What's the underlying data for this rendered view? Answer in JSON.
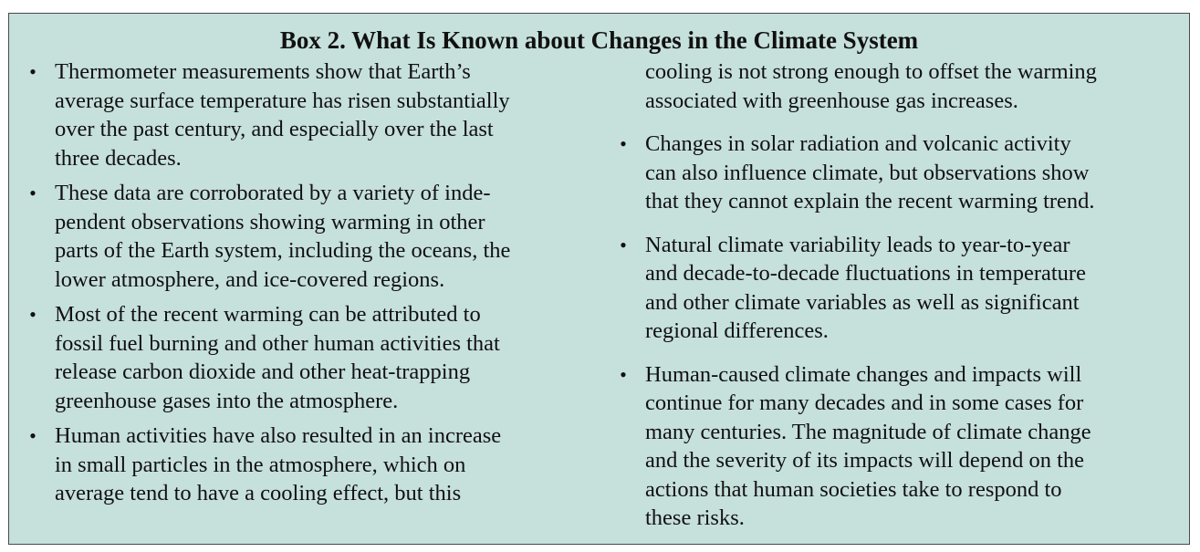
{
  "box": {
    "title": "Box 2.  What Is Known about Changes in the Climate System",
    "bullet_glyph": "•",
    "background_color": "#c6e0dc",
    "left_column": {
      "items": [
        {
          "text": "Thermometer measurements show that Earth’s\naverage surface temperature has risen substantially\nover the past century, and especially over the last\nthree decades."
        },
        {
          "text": "These data are corroborated by a variety of inde-\npendent observations showing warming in other\nparts of the Earth system, including the oceans, the\nlower atmosphere, and ice-covered regions."
        },
        {
          "text": "Most of the recent warming can be attributed to\nfossil fuel burning and other human activities that\nrelease carbon dioxide and other heat-trapping\ngreenhouse gases into the atmosphere."
        },
        {
          "text": "Human activities have also resulted in an increase\nin small particles in the atmosphere, which on\naverage tend to have a cooling effect, but this"
        }
      ]
    },
    "right_column": {
      "continuation": "cooling is not strong enough to offset the warming\nassociated with greenhouse gas increases.",
      "items": [
        {
          "text": "Changes in solar radiation and volcanic activity\ncan also influence climate, but observations show\nthat they cannot explain the recent warming trend."
        },
        {
          "text": "Natural climate variability leads to year-to-year\nand decade-to-decade fluctuations in temperature\nand other climate variables as well as significant\nregional differences."
        },
        {
          "text": "Human-caused climate changes and impacts will\ncontinue for many decades and in some cases for\nmany centuries. The magnitude of climate change\nand the severity of its impacts will depend on the\nactions that human societies take to respond to\nthese risks."
        }
      ]
    }
  }
}
